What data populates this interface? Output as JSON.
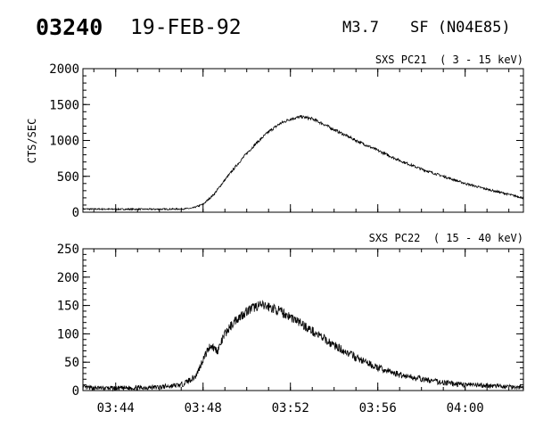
{
  "header": {
    "event_id": "03240",
    "date": "19-FEB-92",
    "flare_class": "M3.7",
    "flare_info": "SF (N04E85)"
  },
  "chart_data": [
    {
      "type": "line",
      "title": "SXS PC21  ( 3 - 15 keV)",
      "ylabel": "CTS/SEC",
      "xlabel": "",
      "xlim": [
        "03:42:30",
        "04:02:40"
      ],
      "ylim": [
        0,
        2000
      ],
      "x_ticks": [
        "03:44",
        "03:48",
        "03:52",
        "03:56",
        "04:00"
      ],
      "y_ticks": [
        "0",
        "500",
        "1000",
        "1500",
        "2000"
      ],
      "grid": false,
      "series": [
        {
          "noise": 22,
          "x": [
            "03:42:30",
            "03:44:00",
            "03:46:00",
            "03:47:00",
            "03:47:30",
            "03:48:00",
            "03:48:30",
            "03:49:00",
            "03:49:30",
            "03:50:00",
            "03:50:30",
            "03:51:00",
            "03:51:30",
            "03:52:00",
            "03:52:30",
            "03:53:00",
            "03:53:30",
            "03:54:00",
            "03:55:00",
            "03:56:00",
            "03:57:00",
            "03:58:00",
            "03:59:00",
            "04:00:00",
            "04:01:00",
            "04:02:40"
          ],
          "y": [
            45,
            42,
            42,
            45,
            55,
            110,
            250,
            450,
            640,
            820,
            980,
            1120,
            1230,
            1300,
            1330,
            1300,
            1230,
            1150,
            1000,
            860,
            720,
            600,
            500,
            400,
            320,
            200
          ]
        }
      ]
    },
    {
      "type": "line",
      "title": "SXS PC22  ( 15 - 40 keV)",
      "ylabel": "",
      "xlabel": "",
      "xlim": [
        "03:42:30",
        "04:02:40"
      ],
      "ylim": [
        0,
        250
      ],
      "x_ticks": [
        "03:44",
        "03:48",
        "03:52",
        "03:56",
        "04:00"
      ],
      "y_ticks": [
        "0",
        "50",
        "100",
        "150",
        "200",
        "250"
      ],
      "grid": false,
      "series": [
        {
          "noise": 9,
          "x": [
            "03:42:30",
            "03:44:00",
            "03:46:00",
            "03:47:00",
            "03:47:40",
            "03:48:00",
            "03:48:20",
            "03:48:40",
            "03:49:00",
            "03:49:30",
            "03:50:00",
            "03:50:30",
            "03:51:00",
            "03:51:30",
            "03:52:00",
            "03:52:30",
            "03:53:00",
            "03:53:30",
            "03:54:00",
            "03:55:00",
            "03:56:00",
            "03:57:00",
            "03:58:00",
            "03:59:00",
            "04:00:00",
            "04:02:40"
          ],
          "y": [
            5,
            4,
            6,
            10,
            25,
            55,
            80,
            70,
            100,
            125,
            140,
            150,
            148,
            140,
            130,
            118,
            105,
            92,
            80,
            58,
            40,
            28,
            20,
            14,
            10,
            6
          ]
        }
      ]
    }
  ]
}
